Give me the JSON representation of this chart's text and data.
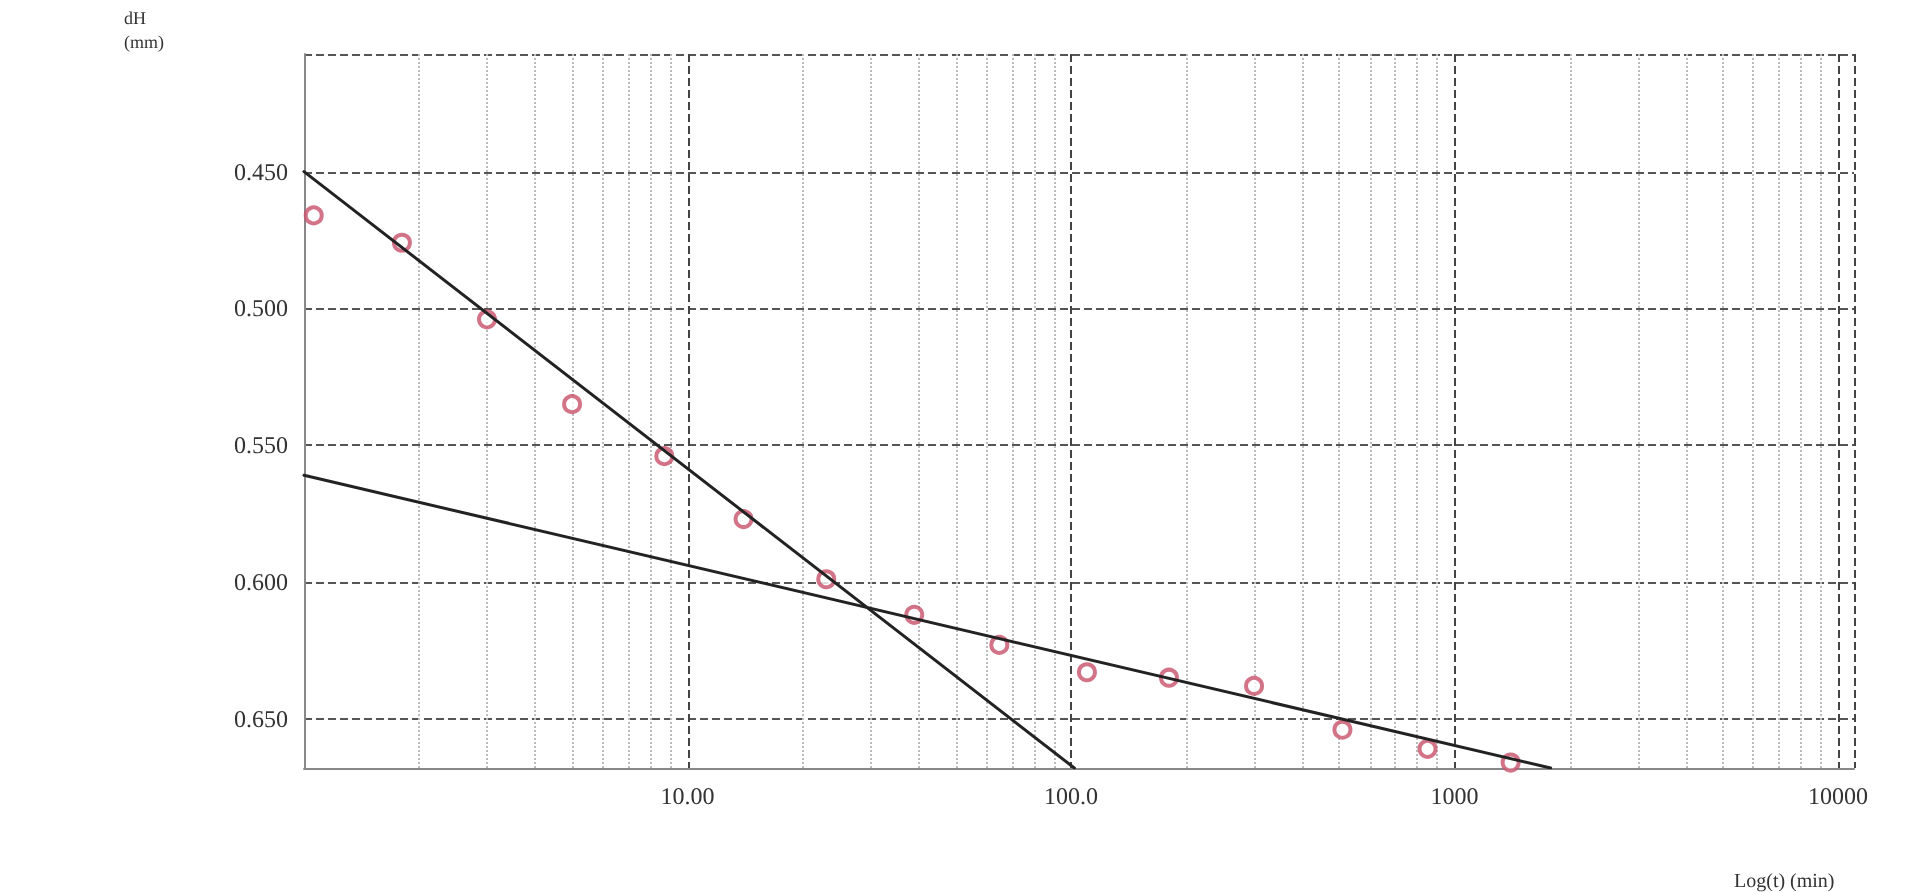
{
  "chart_data": {
    "type": "scatter",
    "xlabel": "Log(t) (min)",
    "ylabel": "dH (mm)",
    "log": "x",
    "xlim": [
      1,
      11000
    ],
    "xticks": [
      {
        "value": 1,
        "label": null
      },
      {
        "value": 10,
        "label": "10.00"
      },
      {
        "value": 100,
        "label": "100.0"
      },
      {
        "value": 1000,
        "label": "1000"
      },
      {
        "value": 10000,
        "label": "10000"
      }
    ],
    "ylim": [
      0.668,
      0.407
    ],
    "yticks": [
      {
        "value": 0.45,
        "label": "0.450"
      },
      {
        "value": 0.5,
        "label": "0.500"
      },
      {
        "value": 0.55,
        "label": "0.550"
      },
      {
        "value": 0.6,
        "label": "0.600"
      },
      {
        "value": 0.65,
        "label": "0.650"
      }
    ],
    "grid": true,
    "series": [
      {
        "marker": "circle",
        "color": "#c8506a",
        "x": [
          1.06,
          1.8,
          3,
          5,
          8.7,
          14,
          23,
          39,
          65,
          110,
          180,
          300,
          510,
          850,
          1400
        ],
        "values": [
          0.466,
          0.476,
          0.504,
          0.535,
          0.554,
          0.577,
          0.599,
          0.612,
          0.623,
          0.633,
          0.635,
          0.638,
          0.654,
          0.661,
          0.666
        ]
      },
      {
        "type": "line",
        "marker": "none",
        "color": "#222222",
        "x": [
          1,
          102
        ],
        "values": [
          0.45,
          0.668
        ]
      },
      {
        "type": "line",
        "marker": "none",
        "color": "#222222",
        "x": [
          1,
          1780
        ],
        "values": [
          0.561,
          0.668
        ]
      }
    ]
  }
}
